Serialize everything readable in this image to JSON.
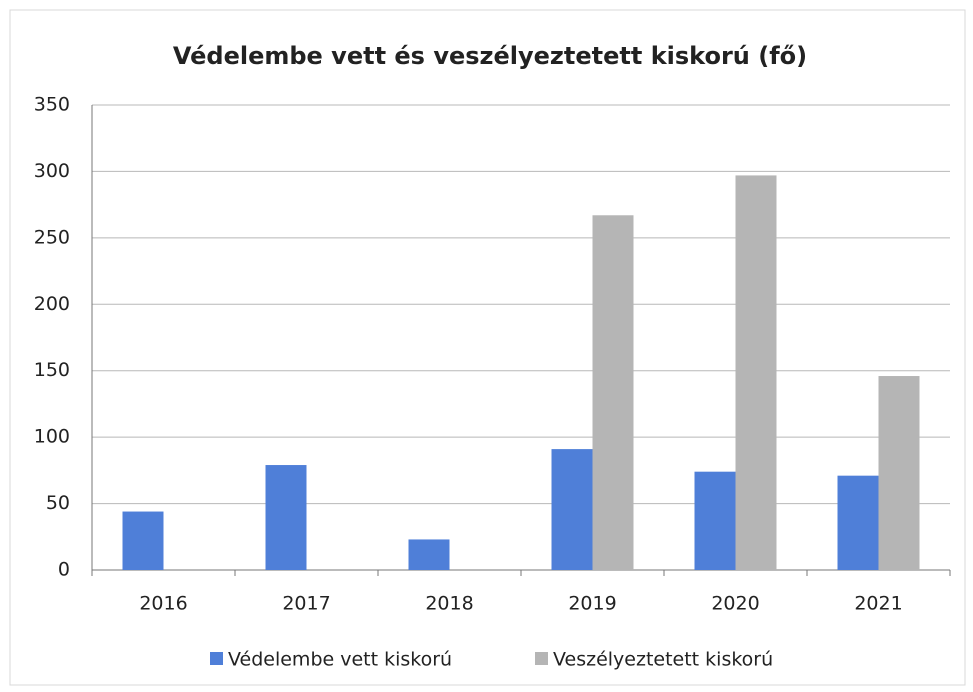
{
  "chart_data": {
    "type": "bar",
    "title": "Védelembe vett és veszélyeztetett kiskorú (fő)",
    "categories": [
      "2016",
      "2017",
      "2018",
      "2019",
      "2020",
      "2021"
    ],
    "series": [
      {
        "name": "Védelembe vett kiskorú",
        "color": "#4f7fd8",
        "values": [
          44,
          79,
          23,
          91,
          74,
          71
        ]
      },
      {
        "name": "Veszélyeztetett kiskorú",
        "color": "#b5b5b5",
        "values": [
          null,
          null,
          null,
          267,
          297,
          146
        ]
      }
    ],
    "ylim": [
      0,
      350
    ],
    "yticks": [
      0,
      50,
      100,
      150,
      200,
      250,
      300,
      350
    ],
    "grid": true,
    "legend": "bottom"
  }
}
